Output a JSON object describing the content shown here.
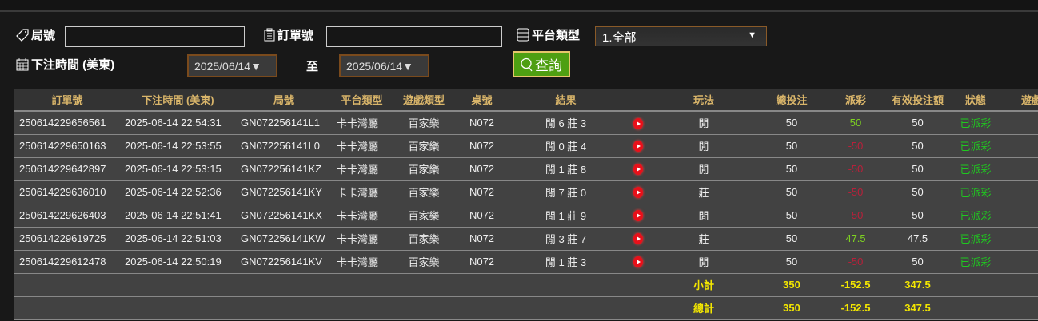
{
  "filters": {
    "round_label": "局號",
    "round_value": "",
    "order_label": "訂單號",
    "order_value": "",
    "platform_label": "平台類型",
    "platform_value": "1.全部",
    "time_label": "下注時間 (美東)",
    "date_from": "2025/06/14▼",
    "to_label": "至",
    "date_to": "2025/06/14▼",
    "query_label": "查詢"
  },
  "table": {
    "headers": [
      "訂單號",
      "下注時間 (美東)",
      "局號",
      "平台類型",
      "遊戲類型",
      "桌號",
      "結果",
      "",
      "玩法",
      "總投注",
      "派彩",
      "有效投注額",
      "狀態",
      "遊戲"
    ],
    "rows": [
      {
        "order": "250614229656561",
        "time": "2025-06-14 22:54:31",
        "round": "GN072256141L1",
        "platform": "卡卡灣廳",
        "game": "百家樂",
        "table": "N072",
        "result": "閒 6 莊 3",
        "play": "閒",
        "bet": "50",
        "payout": "50",
        "payout_type": "win",
        "valid": "50",
        "status": "已派彩"
      },
      {
        "order": "250614229650163",
        "time": "2025-06-14 22:53:55",
        "round": "GN072256141L0",
        "platform": "卡卡灣廳",
        "game": "百家樂",
        "table": "N072",
        "result": "閒 0 莊 4",
        "play": "閒",
        "bet": "50",
        "payout": "-50",
        "payout_type": "lose",
        "valid": "50",
        "status": "已派彩"
      },
      {
        "order": "250614229642897",
        "time": "2025-06-14 22:53:15",
        "round": "GN072256141KZ",
        "platform": "卡卡灣廳",
        "game": "百家樂",
        "table": "N072",
        "result": "閒 1 莊 8",
        "play": "閒",
        "bet": "50",
        "payout": "-50",
        "payout_type": "lose",
        "valid": "50",
        "status": "已派彩"
      },
      {
        "order": "250614229636010",
        "time": "2025-06-14 22:52:36",
        "round": "GN072256141KY",
        "platform": "卡卡灣廳",
        "game": "百家樂",
        "table": "N072",
        "result": "閒 7 莊 0",
        "play": "莊",
        "bet": "50",
        "payout": "-50",
        "payout_type": "lose",
        "valid": "50",
        "status": "已派彩"
      },
      {
        "order": "250614229626403",
        "time": "2025-06-14 22:51:41",
        "round": "GN072256141KX",
        "platform": "卡卡灣廳",
        "game": "百家樂",
        "table": "N072",
        "result": "閒 1 莊 9",
        "play": "閒",
        "bet": "50",
        "payout": "-50",
        "payout_type": "lose",
        "valid": "50",
        "status": "已派彩"
      },
      {
        "order": "250614229619725",
        "time": "2025-06-14 22:51:03",
        "round": "GN072256141KW",
        "platform": "卡卡灣廳",
        "game": "百家樂",
        "table": "N072",
        "result": "閒 3 莊 7",
        "play": "莊",
        "bet": "50",
        "payout": "47.5",
        "payout_type": "win",
        "valid": "47.5",
        "status": "已派彩"
      },
      {
        "order": "250614229612478",
        "time": "2025-06-14 22:50:19",
        "round": "GN072256141KV",
        "platform": "卡卡灣廳",
        "game": "百家樂",
        "table": "N072",
        "result": "閒 1 莊 3",
        "play": "閒",
        "bet": "50",
        "payout": "-50",
        "payout_type": "lose",
        "valid": "50",
        "status": "已派彩"
      }
    ],
    "subtotal": {
      "label": "小計",
      "bet": "350",
      "payout": "-152.5",
      "valid": "347.5"
    },
    "total": {
      "label": "總計",
      "bet": "350",
      "payout": "-152.5",
      "valid": "347.5"
    }
  },
  "colors": {
    "win": "#7ed321",
    "lose": "#b8203a",
    "status": "#1fc91f",
    "summary": "#f3e600",
    "header": "#d9b56a",
    "query": "#4e9f12"
  }
}
